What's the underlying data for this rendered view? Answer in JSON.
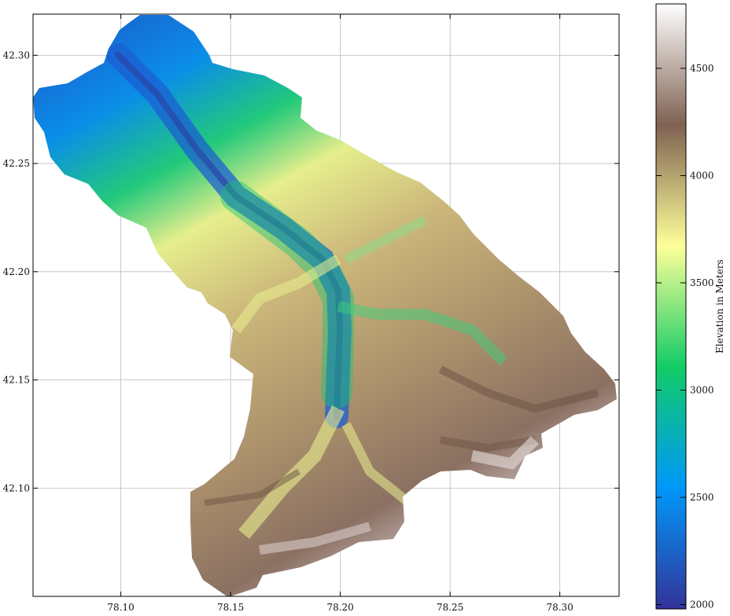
{
  "map": {
    "x_ticks": [
      "78.10",
      "78.15",
      "78.20",
      "78.25",
      "78.30"
    ],
    "y_ticks": [
      "42.30",
      "42.25",
      "42.20",
      "42.15",
      "42.10"
    ],
    "x_values": [
      78.1,
      78.15,
      78.2,
      78.25,
      78.3
    ],
    "y_values": [
      42.3,
      42.25,
      42.2,
      42.15,
      42.1
    ],
    "xlim": [
      78.06,
      78.327
    ],
    "ylim": [
      42.05,
      42.319
    ],
    "grid": true
  },
  "colorbar": {
    "label": "Elevation in Meters",
    "ticks": [
      "2000",
      "2500",
      "3000",
      "3500",
      "4000",
      "4500"
    ],
    "values": [
      2000,
      2500,
      3000,
      3500,
      4000,
      4500
    ],
    "range": [
      1980,
      4800
    ],
    "colormap": "terrain",
    "colors": [
      "#333399",
      "#0098f9",
      "#11cc66",
      "#feff99",
      "#7f6151",
      "#ffffff"
    ]
  }
}
